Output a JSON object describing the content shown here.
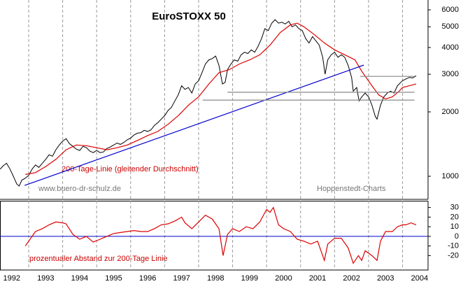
{
  "chart_data": [
    {
      "type": "line",
      "title": "EuroSTOXX 50",
      "log_scale": true,
      "x_grid": true,
      "xlim": [
        1992.156,
        2004.75
      ],
      "ylim": [
        780,
        6670
      ],
      "xticks": [
        1993,
        1994,
        1995,
        1996,
        1997,
        1998,
        1999,
        2000,
        2001,
        2002,
        2003,
        2004
      ],
      "yticks": [
        1000,
        2000,
        3000,
        4000,
        5000,
        6000
      ],
      "annotations": [
        "www.buero-dr-schulz.de",
        "Hoppenstedt-Charts"
      ],
      "series": [
        {
          "color": "#000000",
          "x": [
            1992.16,
            1992.25,
            1992.35,
            1992.45,
            1992.55,
            1992.65,
            1992.72,
            1992.8,
            1992.9,
            1993.0,
            1993.1,
            1993.2,
            1993.3,
            1993.4,
            1993.5,
            1993.6,
            1993.7,
            1993.8,
            1993.9,
            1994.0,
            1994.1,
            1994.2,
            1994.3,
            1994.4,
            1994.5,
            1994.6,
            1994.7,
            1994.8,
            1994.9,
            1995.0,
            1995.1,
            1995.2,
            1995.3,
            1995.4,
            1995.5,
            1995.6,
            1995.7,
            1995.8,
            1995.9,
            1996.0,
            1996.1,
            1996.2,
            1996.3,
            1996.4,
            1996.5,
            1996.6,
            1996.7,
            1996.8,
            1996.9,
            1997.0,
            1997.1,
            1997.2,
            1997.3,
            1997.4,
            1997.5,
            1997.6,
            1997.7,
            1997.8,
            1997.9,
            1998.0,
            1998.1,
            1998.2,
            1998.3,
            1998.4,
            1998.5,
            1998.6,
            1998.7,
            1998.78,
            1998.85,
            1998.95,
            1999.05,
            1999.15,
            1999.25,
            1999.35,
            1999.45,
            1999.55,
            1999.65,
            1999.75,
            1999.85,
            1999.95,
            2000.05,
            2000.15,
            2000.25,
            2000.35,
            2000.45,
            2000.55,
            2000.65,
            2000.75,
            2000.85,
            2000.95,
            2001.05,
            2001.15,
            2001.25,
            2001.35,
            2001.45,
            2001.55,
            2001.65,
            2001.72,
            2001.8,
            2001.9,
            2002.0,
            2002.1,
            2002.2,
            2002.3,
            2002.4,
            2002.5,
            2002.55,
            2002.65,
            2002.72,
            2002.8,
            2002.9,
            2003.0,
            2003.1,
            2003.2,
            2003.25,
            2003.35,
            2003.45,
            2003.55,
            2003.65,
            2003.75,
            2003.85,
            2003.95,
            2004.0,
            2004.1,
            2004.2,
            2004.3,
            2004.4
          ],
          "values": [
            1080,
            1120,
            1150,
            1080,
            1000,
            920,
            900,
            960,
            980,
            1010,
            1080,
            1130,
            1100,
            1150,
            1200,
            1260,
            1240,
            1330,
            1400,
            1460,
            1500,
            1420,
            1380,
            1340,
            1320,
            1380,
            1360,
            1310,
            1290,
            1320,
            1290,
            1300,
            1350,
            1370,
            1400,
            1430,
            1410,
            1440,
            1480,
            1510,
            1560,
            1590,
            1600,
            1640,
            1620,
            1650,
            1730,
            1780,
            1850,
            1920,
            2030,
            2100,
            2250,
            2400,
            2650,
            2550,
            2600,
            2450,
            2700,
            2800,
            3050,
            3350,
            3500,
            3550,
            3650,
            3300,
            2700,
            2750,
            3150,
            3350,
            3500,
            3450,
            3700,
            3800,
            3750,
            3900,
            3800,
            4050,
            4400,
            4900,
            4800,
            5200,
            5400,
            5200,
            5250,
            5150,
            5300,
            5000,
            5100,
            4900,
            4800,
            4400,
            4200,
            4500,
            4300,
            4100,
            3600,
            3000,
            3500,
            3700,
            3800,
            3600,
            3700,
            3600,
            3300,
            2900,
            2500,
            2600,
            2250,
            2350,
            2450,
            2350,
            2150,
            1900,
            1850,
            2150,
            2350,
            2450,
            2500,
            2450,
            2650,
            2750,
            2800,
            2850,
            2900,
            2880,
            2950
          ]
        },
        {
          "name": "200-Tage-Linie (gleitender Durchschnitt)",
          "color": "#dd0000",
          "x": [
            1992.9,
            1993.2,
            1993.5,
            1993.8,
            1994.1,
            1994.4,
            1994.7,
            1995.0,
            1995.3,
            1995.6,
            1995.9,
            1996.2,
            1996.5,
            1996.8,
            1997.1,
            1997.4,
            1997.7,
            1998.0,
            1998.3,
            1998.6,
            1998.9,
            1999.2,
            1999.5,
            1999.8,
            2000.1,
            2000.4,
            2000.7,
            2000.9,
            2001.1,
            2001.4,
            2001.7,
            2002.0,
            2002.3,
            2002.6,
            2002.8,
            2003.1,
            2003.3,
            2003.5,
            2003.7,
            2003.9,
            2004.0,
            2004.2,
            2004.4
          ],
          "values": [
            1020,
            1040,
            1110,
            1200,
            1330,
            1400,
            1390,
            1360,
            1330,
            1360,
            1400,
            1470,
            1550,
            1620,
            1750,
            1920,
            2150,
            2350,
            2700,
            3050,
            3150,
            3350,
            3500,
            3700,
            4100,
            4700,
            5100,
            5200,
            5000,
            4600,
            4200,
            3900,
            3700,
            3500,
            3100,
            2650,
            2400,
            2300,
            2350,
            2500,
            2600,
            2650,
            2700
          ]
        },
        {
          "color": "#0000cc",
          "x": [
            1992.88,
            2002.86
          ],
          "values": [
            906,
            3311
          ]
        },
        {
          "color": "#888888",
          "x": [
            1998.12,
            2004.35
          ],
          "values": [
            2270,
            2270
          ]
        },
        {
          "color": "#888888",
          "x": [
            1998.85,
            2004.35
          ],
          "values": [
            2470,
            2470
          ]
        },
        {
          "color": "#888888",
          "x": [
            2002.75,
            2004.35
          ],
          "values": [
            2930,
            2930
          ]
        }
      ]
    },
    {
      "type": "line",
      "x_grid": true,
      "baseline": 0,
      "baseline_color": "#0000cc",
      "xlim": [
        1992.156,
        2004.75
      ],
      "ylim": [
        -35,
        37
      ],
      "xticks": [
        1993,
        1994,
        1995,
        1996,
        1997,
        1998,
        1999,
        2000,
        2001,
        2002,
        2003,
        2004
      ],
      "yticks": [
        30,
        20,
        10,
        0,
        -10,
        -20
      ],
      "xlabels": [
        1992,
        1993,
        1994,
        1995,
        1996,
        1997,
        1998,
        1999,
        2000,
        2001,
        2002,
        2003,
        2004
      ],
      "series": [
        {
          "name": "prozentualer Abstand zur 200-Tage Linie",
          "color": "#dd0000",
          "x": [
            1992.9,
            1993.0,
            1993.2,
            1993.4,
            1993.6,
            1993.8,
            1994.0,
            1994.1,
            1994.3,
            1994.5,
            1994.7,
            1994.9,
            1995.1,
            1995.3,
            1995.5,
            1995.7,
            1995.9,
            1996.1,
            1996.3,
            1996.5,
            1996.7,
            1996.9,
            1997.1,
            1997.3,
            1997.5,
            1997.6,
            1997.8,
            1998.0,
            1998.2,
            1998.4,
            1998.6,
            1998.72,
            1998.85,
            1999.0,
            1999.2,
            1999.4,
            1999.6,
            1999.8,
            2000.0,
            2000.1,
            2000.2,
            2000.35,
            2000.5,
            2000.7,
            2000.9,
            2001.1,
            2001.3,
            2001.5,
            2001.7,
            2001.8,
            2002.0,
            2002.2,
            2002.4,
            2002.55,
            2002.7,
            2002.8,
            2002.9,
            2003.1,
            2003.25,
            2003.35,
            2003.5,
            2003.7,
            2003.85,
            2004.0,
            2004.1,
            2004.25,
            2004.4
          ],
          "values": [
            -10,
            -5,
            5,
            8,
            12,
            15,
            14,
            13,
            2,
            -3,
            0,
            -6,
            -3,
            0,
            3,
            4,
            5,
            6,
            5,
            5,
            8,
            12,
            13,
            16,
            20,
            14,
            8,
            15,
            22,
            18,
            8,
            -20,
            2,
            8,
            5,
            10,
            8,
            15,
            28,
            25,
            30,
            12,
            8,
            5,
            -3,
            -5,
            -8,
            -5,
            -25,
            -8,
            -2,
            -2,
            -12,
            -28,
            -20,
            -25,
            -15,
            -20,
            -25,
            -5,
            5,
            5,
            10,
            12,
            12,
            14,
            12
          ]
        }
      ]
    }
  ]
}
